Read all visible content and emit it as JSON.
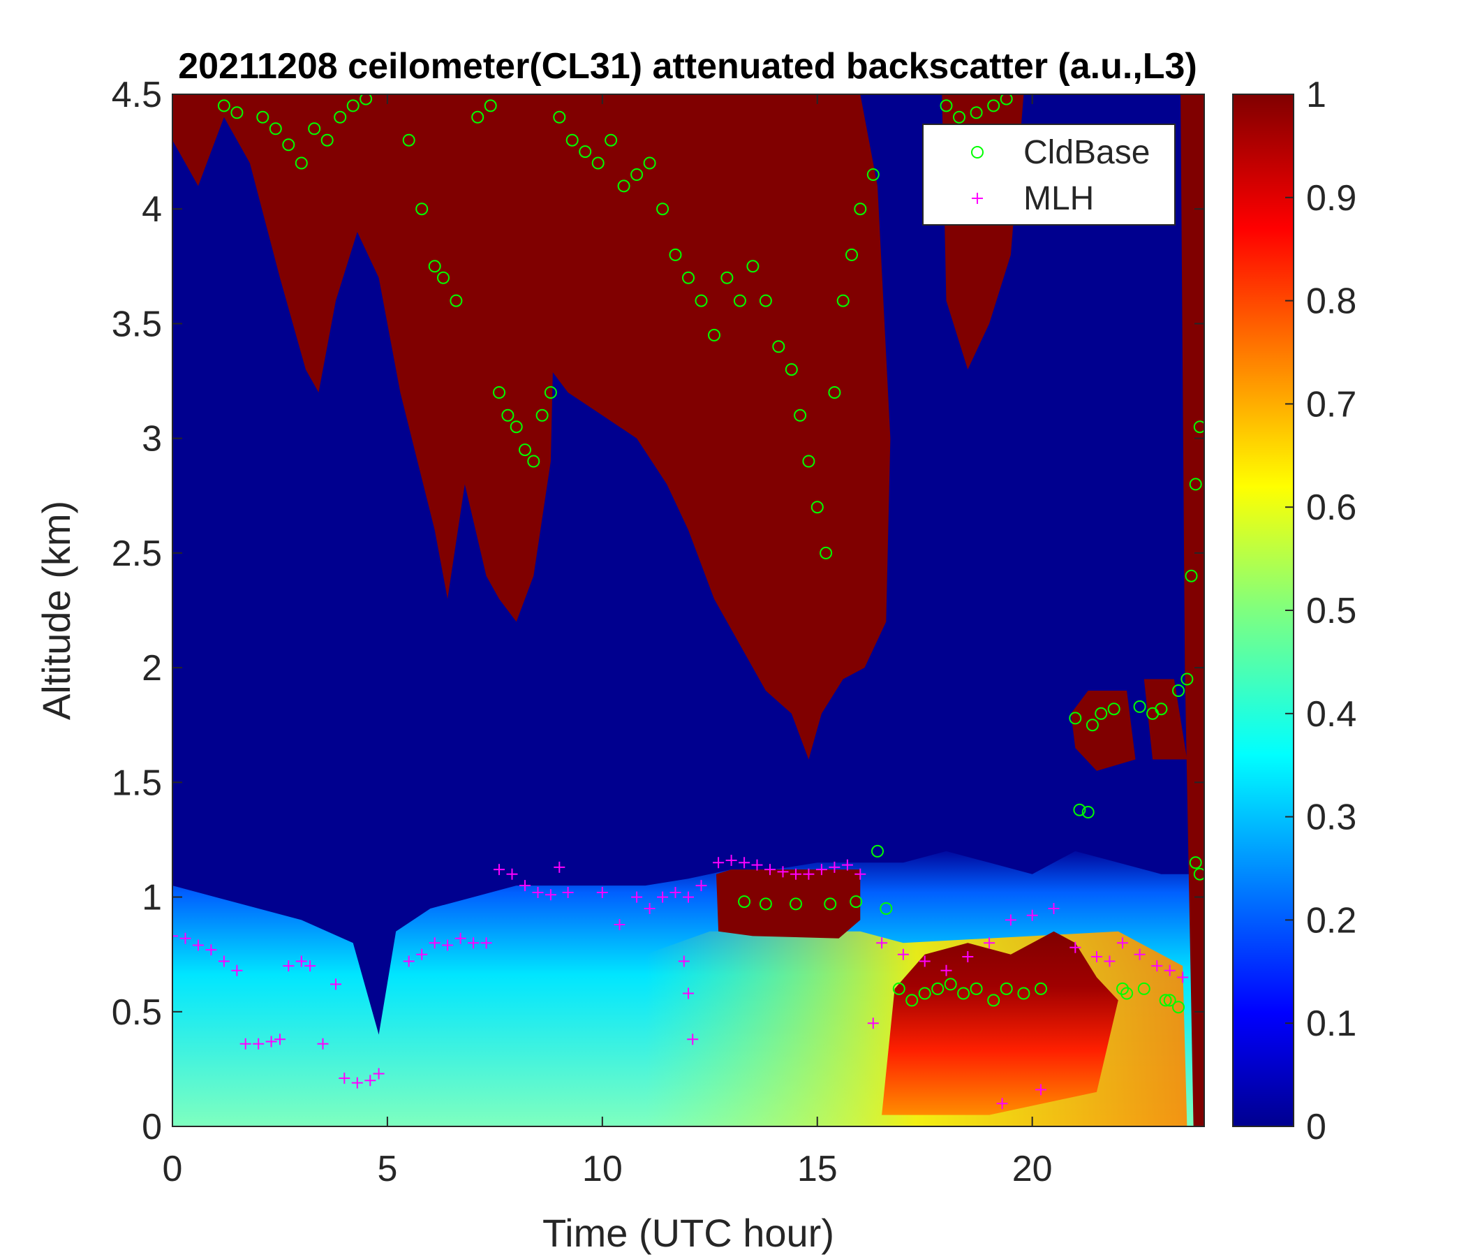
{
  "chart_data": {
    "type": "heatmap",
    "title": "20211208 ceilometer(CL31) attenuated backscatter (a.u.,L3)",
    "xlabel": "Time (UTC hour)",
    "ylabel": "Altitude (km)",
    "xlim": [
      0,
      24
    ],
    "ylim": [
      0,
      4.5
    ],
    "x_ticks": [
      "0",
      "5",
      "10",
      "15",
      "20"
    ],
    "y_ticks": [
      "0",
      "0.5",
      "1",
      "1.5",
      "2",
      "2.5",
      "3",
      "3.5",
      "4",
      "4.5"
    ],
    "colorbar": {
      "colormap": "jet",
      "range": [
        0,
        1
      ],
      "ticks": [
        "0",
        "0.1",
        "0.2",
        "0.3",
        "0.4",
        "0.5",
        "0.6",
        "0.7",
        "0.8",
        "0.9",
        "1"
      ]
    },
    "legend": {
      "position": "top-right",
      "entries": [
        {
          "label": "CldBase",
          "marker": "circle",
          "color": "#00ff00"
        },
        {
          "label": "MLH",
          "marker": "plus",
          "color": "#ff00ff"
        }
      ]
    },
    "grid": false,
    "backscatter_regions": [
      {
        "kind": "boundary-layer aerosol",
        "time_range": [
          0,
          24
        ],
        "altitude_top_km": [
          1.0,
          0.85,
          0.75,
          0.9,
          1.05,
          1.1,
          1.2,
          1.15,
          1.1,
          1.1,
          1.1
        ],
        "value_near_surface": 0.45
      },
      {
        "kind": "high aerosol",
        "time_range": [
          11,
          16
        ],
        "value": 0.65
      },
      {
        "kind": "fog/haze layer",
        "time_range": [
          16.5,
          22
        ],
        "altitude_range_km": [
          0,
          0.8
        ],
        "value": 0.95
      },
      {
        "kind": "cloud layer",
        "time_range": [
          12.7,
          16
        ],
        "altitude_range_km": [
          0.8,
          1.1
        ],
        "value": 1.0
      },
      {
        "kind": "mid-level cloud",
        "time_range": [
          2,
          8.8
        ],
        "altitude_range_km": [
          2.3,
          4.5
        ],
        "value": 1.0
      },
      {
        "kind": "mid-level cloud",
        "time_range": [
          5.5,
          16.5
        ],
        "altitude_range_km": [
          1.8,
          4.5
        ],
        "value": 1.0
      },
      {
        "kind": "mid-level cloud",
        "time_range": [
          18,
          19.8
        ],
        "altitude_range_km": [
          3.3,
          4.5
        ],
        "value": 1.0
      },
      {
        "kind": "low cloud",
        "time_range": [
          21.5,
          23.5
        ],
        "altitude_range_km": [
          1.6,
          1.9
        ],
        "value": 1.0
      },
      {
        "kind": "precipitation",
        "time_range": [
          23.5,
          24
        ],
        "altitude_range_km": [
          0,
          4.5
        ],
        "value": 1.0
      }
    ],
    "series": [
      {
        "name": "CldBase",
        "x": [
          1.2,
          1.5,
          2.1,
          2.4,
          2.7,
          3.0,
          3.3,
          3.6,
          3.9,
          4.2,
          4.5,
          5.5,
          5.8,
          6.1,
          6.3,
          6.6,
          7.1,
          7.4,
          7.6,
          7.8,
          8.0,
          8.2,
          8.4,
          8.6,
          8.8,
          9.0,
          9.3,
          9.6,
          9.9,
          10.2,
          10.5,
          10.8,
          11.1,
          11.4,
          11.7,
          12.0,
          12.3,
          12.6,
          12.9,
          13.2,
          13.5,
          13.8,
          14.1,
          14.4,
          14.6,
          14.8,
          15.0,
          15.2,
          15.4,
          15.6,
          15.8,
          16.0,
          16.3,
          13.3,
          13.8,
          14.5,
          15.3,
          15.9,
          16.4,
          16.6,
          16.9,
          17.2,
          17.5,
          17.8,
          18.1,
          18.4,
          18.7,
          19.1,
          19.4,
          19.8,
          20.2,
          18.0,
          18.3,
          18.7,
          19.1,
          19.4,
          21.1,
          21.3,
          21.6,
          21.9,
          22.1,
          22.5,
          22.8,
          23.0,
          23.2,
          23.4,
          23.6,
          23.8,
          23.9,
          21.0,
          21.4,
          22.2,
          22.6,
          23.1,
          23.4,
          23.7,
          23.8,
          23.9
        ],
        "y": [
          4.45,
          4.42,
          4.4,
          4.35,
          4.28,
          4.2,
          4.35,
          4.3,
          4.4,
          4.45,
          4.48,
          4.3,
          4.0,
          3.75,
          3.7,
          3.6,
          4.4,
          4.45,
          3.2,
          3.1,
          3.05,
          2.95,
          2.9,
          3.1,
          3.2,
          4.4,
          4.3,
          4.25,
          4.2,
          4.3,
          4.1,
          4.15,
          4.2,
          4.0,
          3.8,
          3.7,
          3.6,
          3.45,
          3.7,
          3.6,
          3.75,
          3.6,
          3.4,
          3.3,
          3.1,
          2.9,
          2.7,
          2.5,
          3.2,
          3.6,
          3.8,
          4.0,
          4.15,
          0.98,
          0.97,
          0.97,
          0.97,
          0.98,
          1.2,
          0.95,
          0.6,
          0.55,
          0.58,
          0.6,
          0.62,
          0.58,
          0.6,
          0.55,
          0.6,
          0.58,
          0.6,
          4.45,
          4.4,
          4.42,
          4.45,
          4.48,
          1.38,
          1.37,
          1.8,
          1.82,
          0.6,
          1.83,
          1.8,
          1.82,
          0.55,
          1.9,
          1.95,
          1.15,
          1.1,
          1.78,
          1.75,
          0.58,
          0.6,
          0.55,
          0.52,
          2.4,
          2.8,
          3.05
        ],
        "marker": "circle"
      },
      {
        "name": "MLH",
        "x": [
          0.0,
          0.3,
          0.6,
          0.9,
          1.2,
          1.5,
          1.7,
          2.0,
          2.3,
          2.5,
          2.7,
          3.0,
          3.2,
          3.5,
          3.8,
          4.0,
          4.3,
          4.6,
          4.8,
          5.5,
          5.8,
          6.1,
          6.4,
          6.7,
          7.0,
          7.3,
          7.6,
          7.9,
          8.2,
          8.5,
          8.8,
          9.0,
          9.2,
          10.0,
          10.4,
          10.8,
          11.1,
          11.4,
          11.7,
          12.0,
          12.3,
          12.7,
          13.0,
          13.3,
          13.6,
          13.9,
          14.2,
          14.5,
          14.8,
          15.1,
          15.4,
          15.7,
          16.0,
          16.5,
          17.0,
          17.5,
          18.0,
          18.5,
          19.0,
          19.5,
          20.0,
          20.5,
          21.0,
          21.5,
          21.8,
          22.1,
          22.5,
          22.9,
          23.2,
          23.5,
          12.0,
          12.1,
          11.9,
          16.3,
          19.3,
          20.2
        ],
        "y": [
          0.83,
          0.82,
          0.79,
          0.77,
          0.72,
          0.68,
          0.36,
          0.36,
          0.37,
          0.38,
          0.7,
          0.72,
          0.7,
          0.36,
          0.62,
          0.21,
          0.19,
          0.2,
          0.23,
          0.72,
          0.75,
          0.8,
          0.79,
          0.82,
          0.8,
          0.8,
          1.12,
          1.1,
          1.05,
          1.02,
          1.01,
          1.13,
          1.02,
          1.02,
          0.88,
          1.0,
          0.95,
          1.0,
          1.02,
          1.0,
          1.05,
          1.15,
          1.16,
          1.15,
          1.14,
          1.12,
          1.11,
          1.1,
          1.1,
          1.12,
          1.13,
          1.14,
          1.1,
          0.8,
          0.75,
          0.72,
          0.68,
          0.74,
          0.8,
          0.9,
          0.92,
          0.95,
          0.78,
          0.74,
          0.72,
          0.8,
          0.75,
          0.7,
          0.68,
          0.65,
          0.58,
          0.38,
          0.72,
          0.45,
          0.1,
          0.16
        ],
        "marker": "plus"
      }
    ]
  }
}
